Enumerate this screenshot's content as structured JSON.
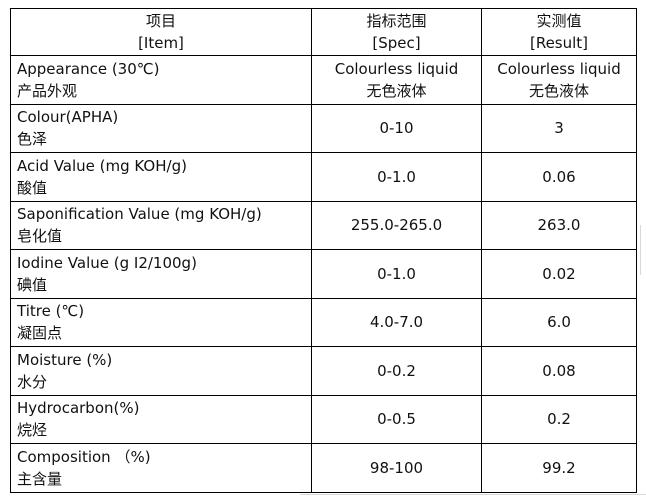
{
  "table": {
    "header": [
      [
        "项目",
        "[Item]"
      ],
      [
        "指标范围",
        "[Spec]"
      ],
      [
        "实测值",
        "[Result]"
      ]
    ],
    "rows": [
      [
        [
          "Appearance (30℃)",
          "产品外观"
        ],
        [
          "Colourless liquid",
          "无色液体"
        ],
        [
          "Colourless liquid",
          "无色液体"
        ]
      ],
      [
        [
          "Colour(APHA)",
          "色泽"
        ],
        [
          "0-10"
        ],
        [
          "3"
        ]
      ],
      [
        [
          "Acid Value (mg KOH/g)",
          "酸值"
        ],
        [
          "0-1.0"
        ],
        [
          "0.06"
        ]
      ],
      [
        [
          "Saponification Value (mg KOH/g)",
          "皂化值"
        ],
        [
          "255.0-265.0"
        ],
        [
          "263.0"
        ]
      ],
      [
        [
          "Iodine Value (g I2/100g)",
          "碘值"
        ],
        [
          "0-1.0"
        ],
        [
          "0.02"
        ]
      ],
      [
        [
          "Titre (℃)",
          "凝固点"
        ],
        [
          "4.0-7.0"
        ],
        [
          "6.0"
        ]
      ],
      [
        [
          "Moisture (%)",
          "水分"
        ],
        [
          "0-0.2"
        ],
        [
          "0.08"
        ]
      ],
      [
        [
          "Hydrocarbon(%)",
          "烷烃"
        ],
        [
          "0-0.5"
        ],
        [
          "0.2"
        ]
      ],
      [
        [
          "Composition （%)",
          "主含量"
        ],
        [
          "98-100"
        ],
        [
          "99.2"
        ]
      ]
    ]
  }
}
